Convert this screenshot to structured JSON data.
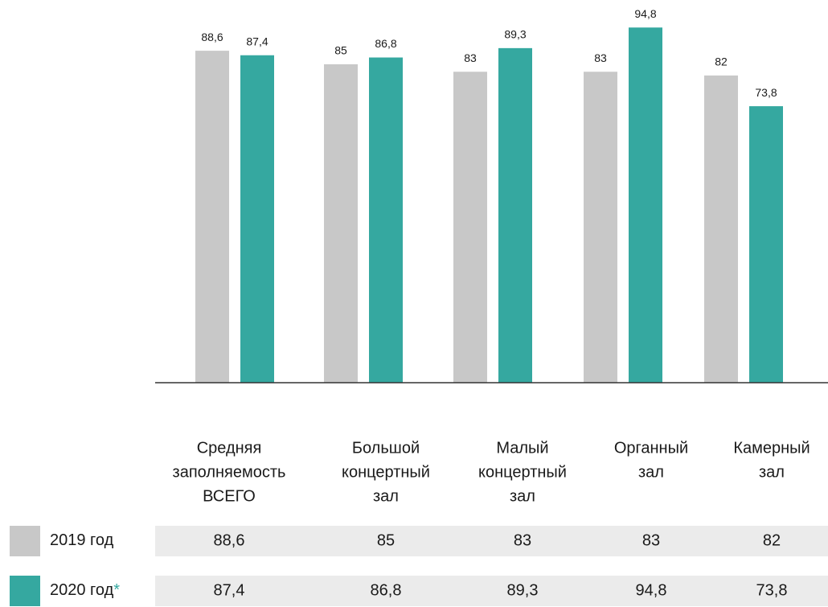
{
  "chart_data": {
    "type": "bar",
    "categories": [
      [
        "Средняя",
        "заполняемость",
        "ВСЕГО"
      ],
      [
        "Большой",
        "концертный",
        "зал"
      ],
      [
        "Малый",
        "концертный",
        "зал"
      ],
      [
        "Органный",
        "зал"
      ],
      [
        "Камерный",
        "зал"
      ]
    ],
    "series": [
      {
        "name": "2019 год",
        "color": "#c8c8c8",
        "values": [
          88.6,
          85,
          83,
          83,
          82
        ],
        "value_labels": [
          "88,6",
          "85",
          "83",
          "83",
          "82"
        ]
      },
      {
        "name": "2020 год",
        "name_suffix": "*",
        "color": "#35a8a0",
        "values": [
          87.4,
          86.8,
          89.3,
          94.8,
          73.8
        ],
        "value_labels": [
          "87,4",
          "86,8",
          "89,3",
          "94,8",
          "73,8"
        ]
      }
    ],
    "ylim": [
      0,
      100
    ],
    "table_color": "#ebebeb"
  }
}
